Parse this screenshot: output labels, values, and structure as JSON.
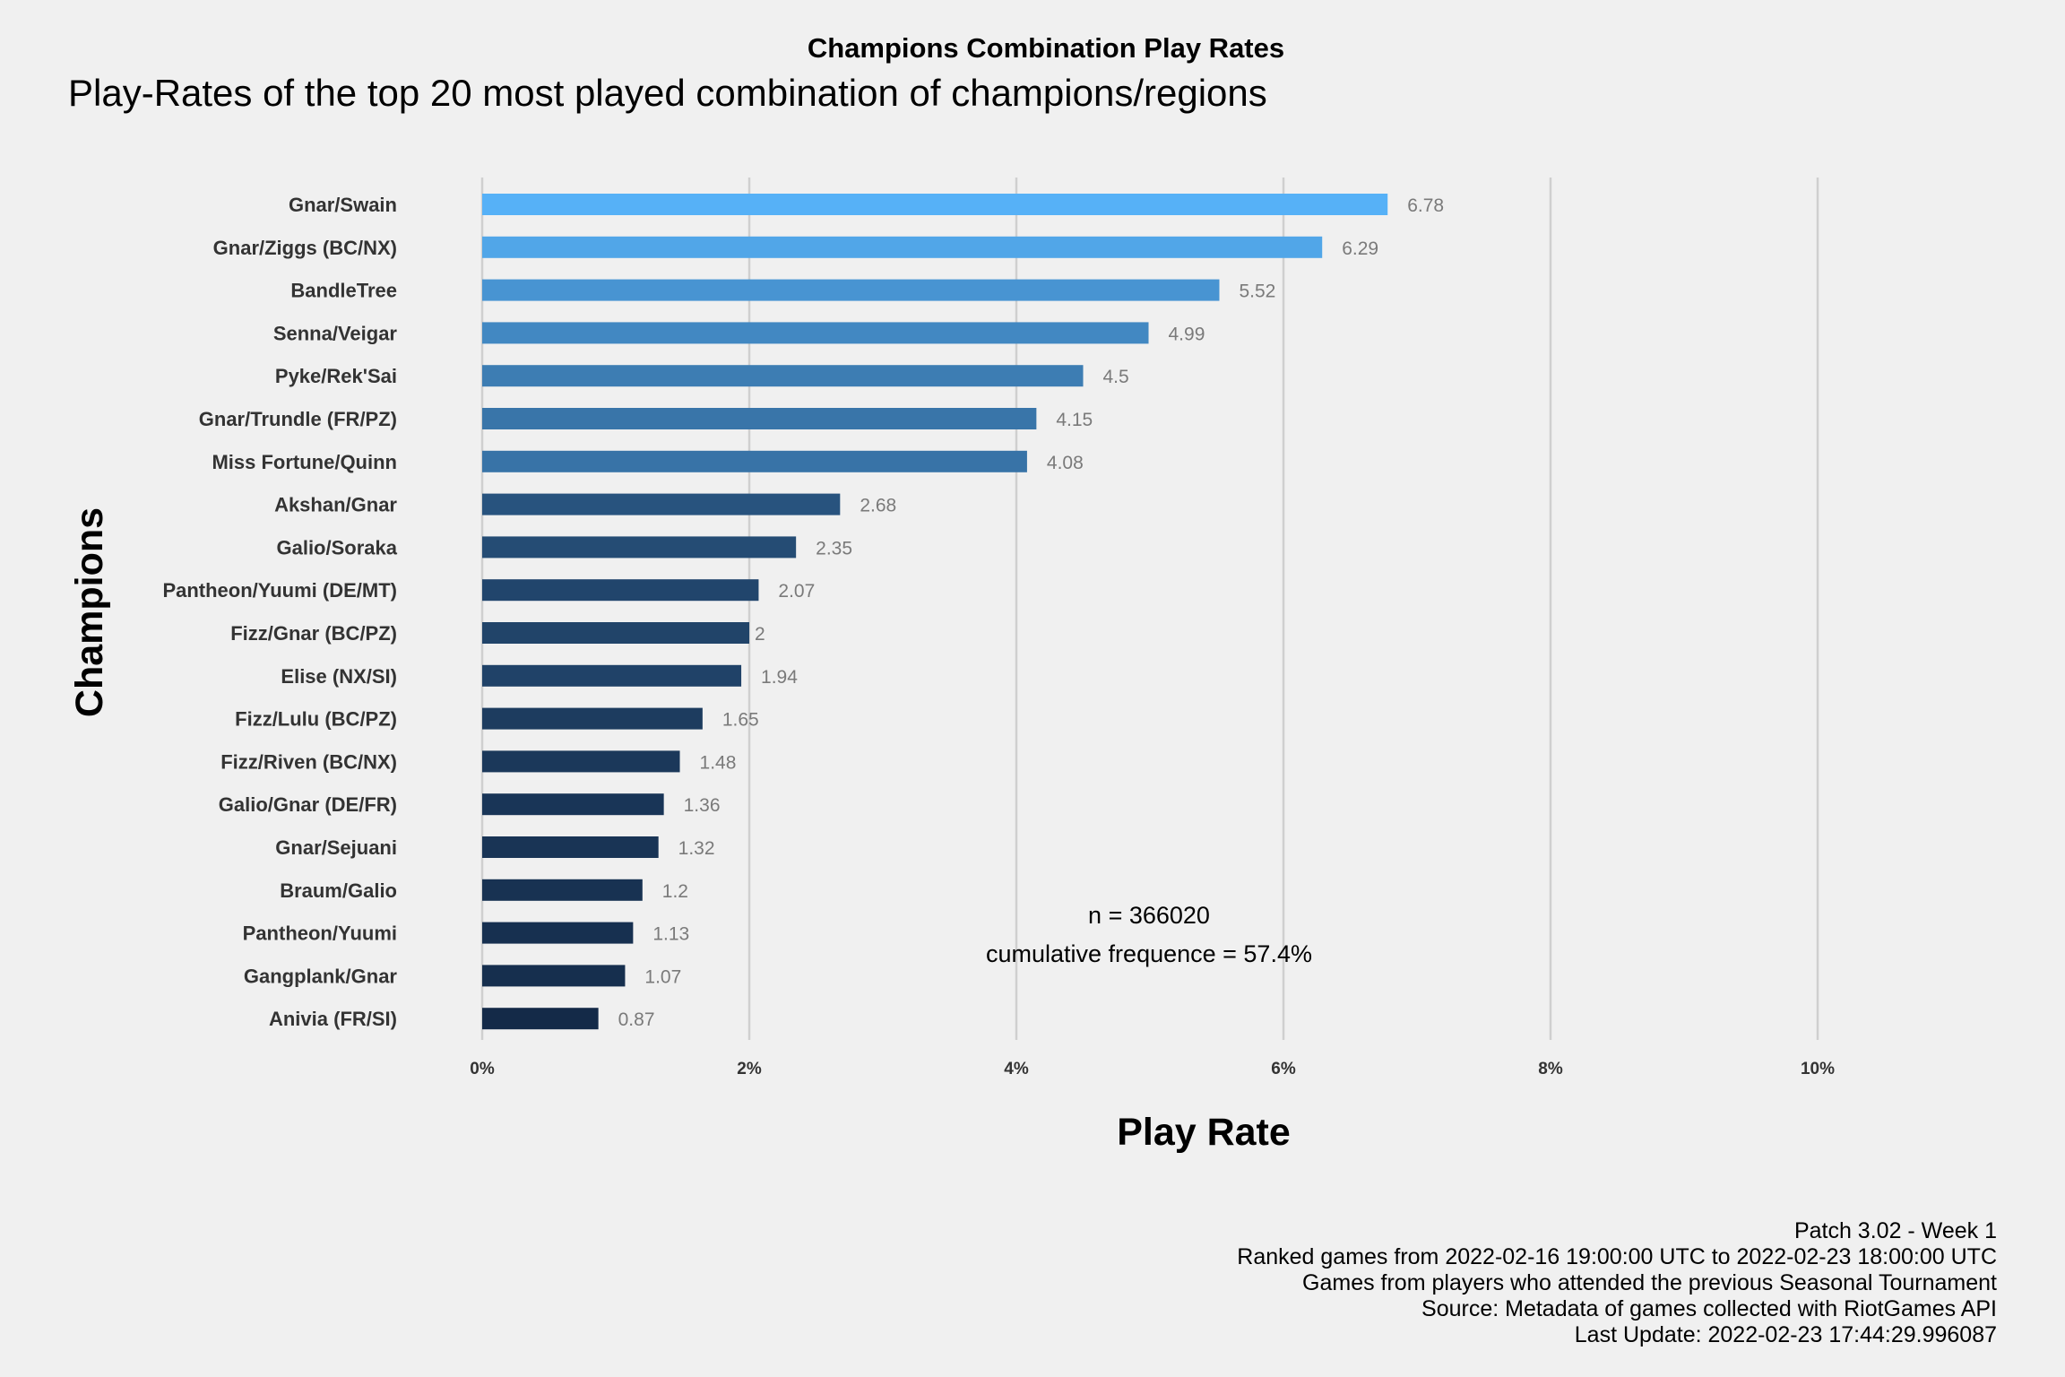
{
  "chart_data": {
    "type": "bar",
    "orientation": "horizontal",
    "title": "Champions Combination Play Rates",
    "subtitle": "Play-Rates of the top 20 most played combination of champions/regions",
    "xlabel": "Play Rate",
    "ylabel": "Champions",
    "xlim": [
      0,
      10
    ],
    "xticks": [
      0,
      2,
      4,
      6,
      8,
      10
    ],
    "xtick_labels": [
      "0%",
      "2%",
      "4%",
      "6%",
      "8%",
      "10%"
    ],
    "grid": true,
    "categories": [
      "Gnar/Swain",
      "Gnar/Ziggs (BC/NX)",
      "BandleTree",
      "Senna/Veigar",
      "Pyke/Rek'Sai",
      "Gnar/Trundle (FR/PZ)",
      "Miss Fortune/Quinn",
      "Akshan/Gnar",
      "Galio/Soraka",
      "Pantheon/Yuumi (DE/MT)",
      "Fizz/Gnar (BC/PZ)",
      "Elise (NX/SI)",
      "Fizz/Lulu (BC/PZ)",
      "Fizz/Riven (BC/NX)",
      "Galio/Gnar (DE/FR)",
      "Gnar/Sejuani",
      "Braum/Galio",
      "Pantheon/Yuumi",
      "Gangplank/Gnar",
      "Anivia (FR/SI)"
    ],
    "values": [
      6.78,
      6.29,
      5.52,
      4.99,
      4.5,
      4.15,
      4.08,
      2.68,
      2.35,
      2.07,
      2,
      1.94,
      1.65,
      1.48,
      1.36,
      1.32,
      1.2,
      1.13,
      1.07,
      0.87
    ],
    "value_labels": [
      "6.78",
      "6.29",
      "5.52",
      "4.99",
      "4.5",
      "4.15",
      "4.08",
      "2.68",
      "2.35",
      "2.07",
      "2",
      "1.94",
      "1.65",
      "1.48",
      "1.36",
      "1.32",
      "1.2",
      "1.13",
      "1.07",
      "0.87"
    ],
    "color_scale": {
      "low": "#142a48",
      "high": "#56b1f7"
    },
    "annotation": [
      "n = 366020",
      "cumulative frequence = 57.4%"
    ],
    "caption": [
      "Patch 3.02 - Week 1",
      "Ranked games from 2022-02-16 19:00:00 UTC to 2022-02-23 18:00:00 UTC",
      "Games from players who attended the previous Seasonal Tournament",
      "Source: Metadata of games collected with RiotGames API",
      "Last Update: 2022-02-23 17:44:29.996087"
    ]
  }
}
